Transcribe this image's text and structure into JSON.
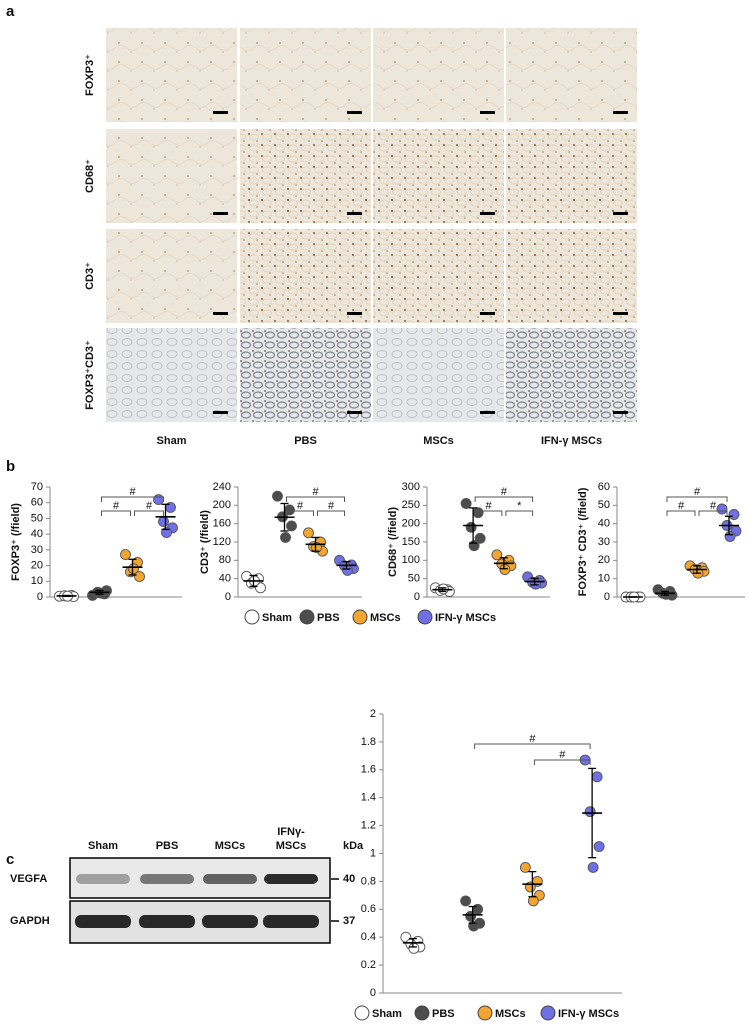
{
  "panel_labels": {
    "a": "a",
    "b": "b",
    "c": "c"
  },
  "histology": {
    "row_labels": [
      "FOXP3⁺",
      "CD68⁺",
      "CD3⁺",
      "FOXP3⁺CD3⁺"
    ],
    "column_labels": [
      "Sham",
      "PBS",
      "MSCs",
      "IFN-γ MSCs"
    ]
  },
  "western_blot": {
    "lane_labels": [
      "Sham",
      "PBS",
      "MSCs",
      [
        "IFNγ-",
        "MSCs"
      ]
    ],
    "row_labels": [
      "VEGFA",
      "GAPDH"
    ],
    "unit_label": "kDa",
    "markers": [
      40,
      37
    ]
  },
  "chart_data": [
    {
      "type": "dot",
      "ylabel": "FOXP3⁺ (/field)",
      "ylim": [
        0,
        70
      ],
      "yticks": [
        0,
        10,
        20,
        30,
        40,
        50,
        60,
        70
      ],
      "series": [
        {
          "name": "Sham",
          "color": "#ffffff",
          "values": [
            0.5,
            1,
            0.8,
            0.3,
            0.5
          ],
          "mean": 0.7,
          "sd": 0.3
        },
        {
          "name": "PBS",
          "color": "#4d4d4d",
          "values": [
            1,
            2,
            3,
            4,
            2.5
          ],
          "mean": 3,
          "sd": 1.2
        },
        {
          "name": "MSCs",
          "color": "#f2a530",
          "values": [
            27,
            22,
            16,
            13,
            18
          ],
          "mean": 19,
          "sd": 5
        },
        {
          "name": "IFN-γ MSCs",
          "color": "#6f6fe6",
          "values": [
            62,
            57,
            48,
            44,
            41
          ],
          "mean": 51,
          "sd": 8
        }
      ],
      "brackets": [
        {
          "pair": [
            1,
            3
          ],
          "label": "#"
        },
        {
          "pair": [
            1,
            2
          ],
          "label": "#"
        },
        {
          "pair": [
            2,
            3
          ],
          "label": "#"
        }
      ]
    },
    {
      "type": "dot",
      "ylabel": "CD3⁺ (/field)",
      "ylim": [
        0,
        240
      ],
      "yticks": [
        0,
        40,
        80,
        120,
        160,
        200,
        240
      ],
      "series": [
        {
          "color": "#ffffff",
          "values": [
            45,
            40,
            30,
            20,
            35
          ],
          "mean": 35,
          "sd": 12
        },
        {
          "color": "#4d4d4d",
          "values": [
            220,
            190,
            175,
            155,
            130
          ],
          "mean": 174,
          "sd": 30
        },
        {
          "color": "#f2a530",
          "values": [
            140,
            120,
            110,
            100,
            108
          ],
          "mean": 115,
          "sd": 15
        },
        {
          "color": "#6f6fe6",
          "values": [
            80,
            70,
            68,
            62,
            58
          ],
          "mean": 69,
          "sd": 8
        }
      ],
      "brackets": [
        {
          "pair": [
            1,
            3
          ],
          "label": "#"
        },
        {
          "pair": [
            1,
            2
          ],
          "label": "#"
        },
        {
          "pair": [
            2,
            3
          ],
          "label": "#"
        }
      ]
    },
    {
      "type": "dot",
      "ylabel": "CD68⁺ (/field)",
      "ylim": [
        0,
        300
      ],
      "yticks": [
        0,
        50,
        100,
        150,
        200,
        250,
        300
      ],
      "series": [
        {
          "color": "#ffffff",
          "values": [
            25,
            20,
            18,
            15,
            22
          ],
          "mean": 20,
          "sd": 5
        },
        {
          "color": "#4d4d4d",
          "values": [
            255,
            230,
            190,
            160,
            140
          ],
          "mean": 195,
          "sd": 48
        },
        {
          "color": "#f2a530",
          "values": [
            115,
            100,
            90,
            85,
            75
          ],
          "mean": 92,
          "sd": 15
        },
        {
          "color": "#6f6fe6",
          "values": [
            55,
            45,
            40,
            38,
            35
          ],
          "mean": 42,
          "sd": 9
        }
      ],
      "brackets": [
        {
          "pair": [
            1,
            3
          ],
          "label": "#"
        },
        {
          "pair": [
            1,
            2
          ],
          "label": "#"
        },
        {
          "pair": [
            2,
            3
          ],
          "label": "*"
        }
      ]
    },
    {
      "type": "dot",
      "ylabel": "FOXP3⁺ CD3⁺ (/field)",
      "ylim": [
        0,
        60
      ],
      "yticks": [
        0,
        10,
        20,
        30,
        40,
        50,
        60
      ],
      "series": [
        {
          "color": "#ffffff",
          "values": [
            0,
            0,
            0,
            0,
            0
          ],
          "mean": 0,
          "sd": 0
        },
        {
          "color": "#4d4d4d",
          "values": [
            4,
            3,
            2,
            1,
            1.5
          ],
          "mean": 2,
          "sd": 1
        },
        {
          "color": "#f2a530",
          "values": [
            17,
            16,
            15,
            14,
            13
          ],
          "mean": 15,
          "sd": 2
        },
        {
          "color": "#6f6fe6",
          "values": [
            48,
            45,
            39,
            36,
            33
          ],
          "mean": 39,
          "sd": 5
        }
      ],
      "brackets": [
        {
          "pair": [
            1,
            3
          ],
          "label": "#"
        },
        {
          "pair": [
            1,
            2
          ],
          "label": "#"
        },
        {
          "pair": [
            2,
            3
          ],
          "label": "#"
        }
      ]
    },
    {
      "type": "dot",
      "ylim": [
        0,
        2
      ],
      "yticks": [
        0,
        0.2,
        0.4,
        0.6,
        0.8,
        1,
        1.2,
        1.4,
        1.6,
        1.8,
        2
      ],
      "series": [
        {
          "name": "Sham",
          "color": "#ffffff",
          "values": [
            0.4,
            0.37,
            0.35,
            0.33,
            0.32
          ],
          "mean": 0.36,
          "sd": 0.03
        },
        {
          "name": "PBS",
          "color": "#4d4d4d",
          "values": [
            0.66,
            0.6,
            0.55,
            0.5,
            0.48
          ],
          "mean": 0.56,
          "sd": 0.06
        },
        {
          "name": "MSCs",
          "color": "#f2a530",
          "values": [
            0.9,
            0.8,
            0.76,
            0.7,
            0.66
          ],
          "mean": 0.78,
          "sd": 0.09
        },
        {
          "name": "IFN-γ MSCs",
          "color": "#6f6fe6",
          "values": [
            1.67,
            1.55,
            1.3,
            1.05,
            0.9
          ],
          "mean": 1.29,
          "sd": 0.32
        }
      ],
      "brackets": [
        {
          "pair": [
            1,
            3
          ],
          "label": "#"
        },
        {
          "pair": [
            2,
            3
          ],
          "label": "#"
        }
      ]
    }
  ]
}
